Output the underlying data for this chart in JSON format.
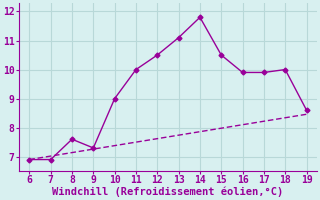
{
  "x_data": [
    6,
    7,
    8,
    9,
    10,
    11,
    12,
    13,
    14,
    15,
    16,
    17,
    18,
    19
  ],
  "y_jagged": [
    6.9,
    6.9,
    7.6,
    7.3,
    9.0,
    10.0,
    10.5,
    11.1,
    11.8,
    10.5,
    9.9,
    9.9,
    10.0,
    8.6
  ],
  "y_smooth": [
    6.9,
    7.02,
    7.14,
    7.26,
    7.38,
    7.5,
    7.62,
    7.74,
    7.86,
    7.98,
    8.1,
    8.22,
    8.34,
    8.46
  ],
  "line_color": "#990099",
  "background_color": "#d8f0f0",
  "grid_color": "#b8d8d8",
  "xlabel": "Windchill (Refroidissement éolien,°C)",
  "xlim": [
    5.5,
    19.5
  ],
  "ylim": [
    6.5,
    12.3
  ],
  "xticks": [
    6,
    7,
    8,
    9,
    10,
    11,
    12,
    13,
    14,
    15,
    16,
    17,
    18,
    19
  ],
  "yticks": [
    7,
    8,
    9,
    10,
    11,
    12
  ],
  "marker": "D",
  "markersize": 2.5,
  "linewidth": 1.0,
  "smooth_linewidth": 1.0,
  "xlabel_fontsize": 7.5,
  "tick_fontsize": 7
}
